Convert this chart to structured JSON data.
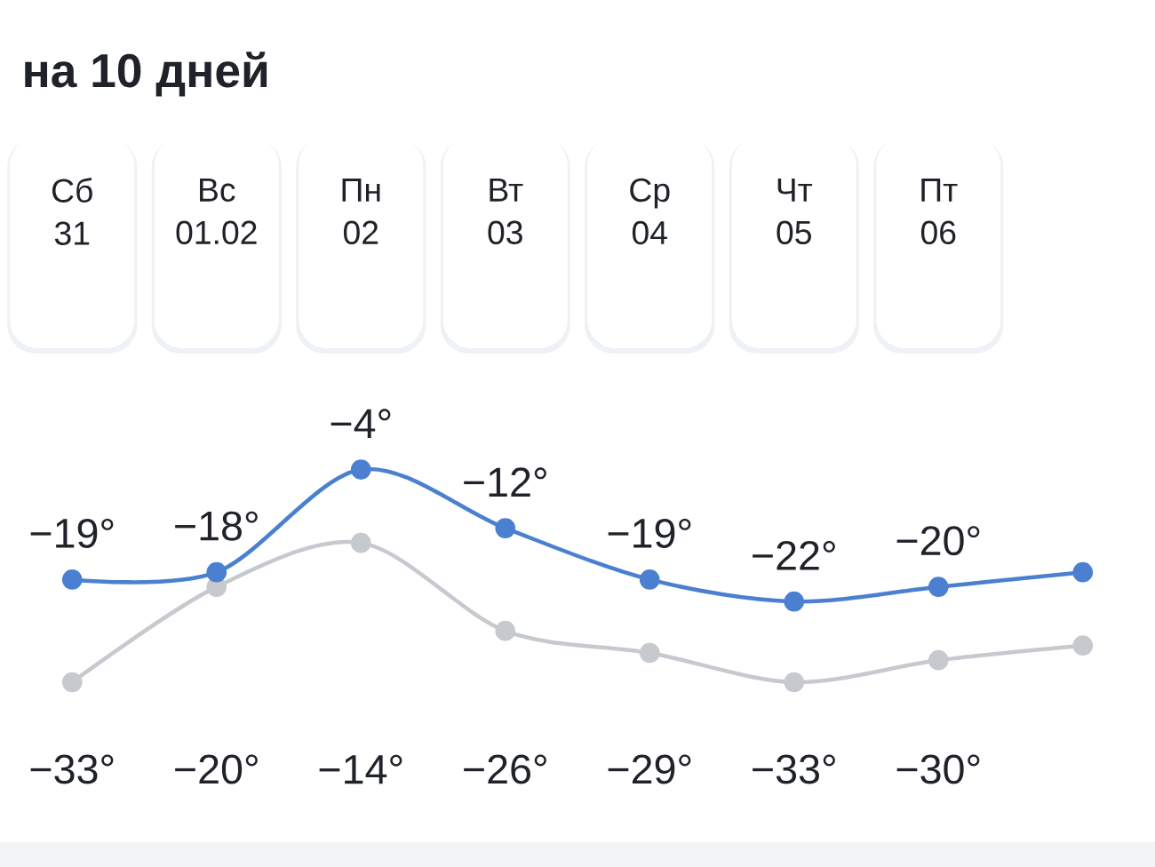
{
  "chart_data": {
    "type": "line",
    "title": "на 10 дней",
    "categories": [
      "Сб 31",
      "Вс 01.02",
      "Пн 02",
      "Вт 03",
      "Ср 04",
      "Чт 05",
      "Пт 06",
      null
    ],
    "series": [
      {
        "color": "#4b80d0",
        "values": [
          -19,
          -18,
          -4,
          -12,
          -19,
          -22,
          -20,
          -18
        ],
        "value_labels": [
          "−19°",
          "−18°",
          "−4°",
          "−12°",
          "−19°",
          "−22°",
          "−20°",
          null
        ]
      },
      {
        "color": "#c6c9ce",
        "values": [
          -33,
          -20,
          -14,
          -26,
          -29,
          -33,
          -30,
          -28
        ],
        "value_labels": [
          "−33°",
          "−20°",
          "−14°",
          "−26°",
          "−29°",
          "−33°",
          "−30°",
          null
        ]
      }
    ],
    "tick_labels": "x",
    "marker": "circle",
    "line_style": "solid"
  }
}
